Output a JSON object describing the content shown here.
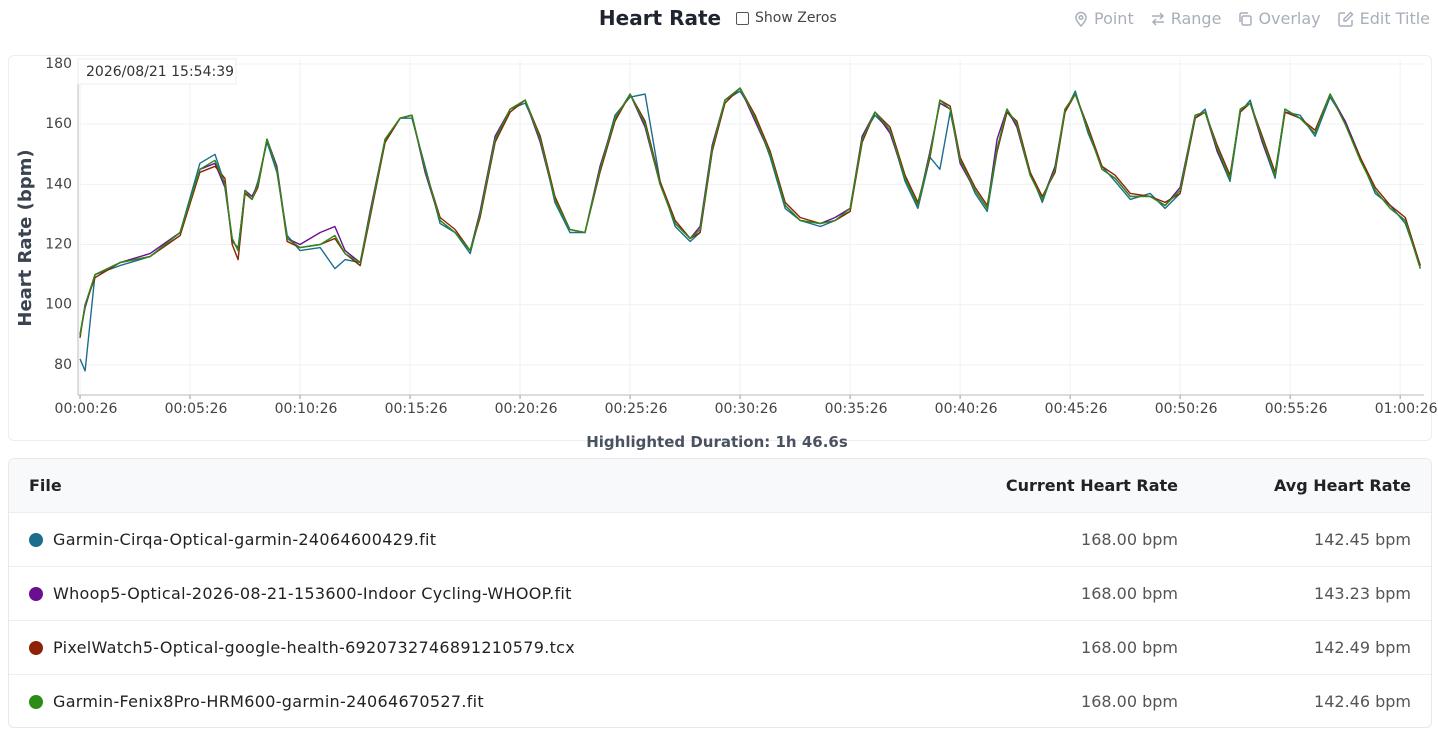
{
  "header": {
    "show_zeros": "Show Zeros",
    "buttons": [
      "Point",
      "Range",
      "Overlay",
      "Edit Title"
    ]
  },
  "chart_data": {
    "type": "line",
    "title": "Heart Rate",
    "y_label": "Heart Rate (bpm)",
    "tooltip": "2026/08/21 15:54:39",
    "xlim": [
      26,
      3691
    ],
    "ylim": [
      70,
      180
    ],
    "yticks": [
      80,
      100,
      120,
      140,
      160,
      180
    ],
    "xticks": [
      {
        "value": 26,
        "label": "00:00:26"
      },
      {
        "value": 326,
        "label": "00:05:26"
      },
      {
        "value": 626,
        "label": "00:10:26"
      },
      {
        "value": 926,
        "label": "00:15:26"
      },
      {
        "value": 1226,
        "label": "00:20:26"
      },
      {
        "value": 1526,
        "label": "00:25:26"
      },
      {
        "value": 1826,
        "label": "00:30:26"
      },
      {
        "value": 2126,
        "label": "00:35:26"
      },
      {
        "value": 2426,
        "label": "00:40:26"
      },
      {
        "value": 2726,
        "label": "00:45:26"
      },
      {
        "value": 3026,
        "label": "00:50:26"
      },
      {
        "value": 3326,
        "label": "00:55:26"
      },
      {
        "value": 3626,
        "label": "01:00:26"
      }
    ],
    "grid": true,
    "x": [
      26,
      40,
      67,
      135,
      217,
      299,
      353,
      394,
      421,
      441,
      457,
      476,
      495,
      511,
      536,
      563,
      591,
      626,
      681,
      721,
      749,
      790,
      817,
      858,
      899,
      931,
      967,
      1008,
      1049,
      1090,
      1117,
      1158,
      1199,
      1240,
      1281,
      1321,
      1362,
      1403,
      1444,
      1485,
      1526,
      1567,
      1608,
      1649,
      1690,
      1717,
      1750,
      1785,
      1826,
      1867,
      1908,
      1949,
      1990,
      2045,
      2085,
      2126,
      2159,
      2194,
      2235,
      2276,
      2311,
      2344,
      2371,
      2399,
      2426,
      2467,
      2500,
      2527,
      2554,
      2581,
      2617,
      2650,
      2685,
      2712,
      2740,
      2775,
      2813,
      2849,
      2890,
      2944,
      2985,
      3026,
      3067,
      3094,
      3127,
      3162,
      3190,
      3217,
      3250,
      3285,
      3312,
      3353,
      3394,
      3435,
      3476,
      3517,
      3558,
      3599,
      3640,
      3681
    ],
    "series": [
      {
        "name": "Garmin-Cirqa-Optical-garmin-24064600429.fit",
        "color": "#1b6e8e",
        "values": [
          82,
          78,
          110,
          113,
          116,
          124,
          147,
          150,
          140,
          121,
          119,
          137,
          135,
          141,
          154,
          144,
          123,
          118,
          119,
          112,
          115,
          114,
          130,
          154,
          162,
          162,
          146,
          127,
          124,
          117,
          130,
          154,
          165,
          167,
          156,
          134,
          124,
          124,
          145,
          163,
          169,
          170,
          141,
          126,
          121,
          124,
          151,
          168,
          171,
          163,
          149,
          132,
          128,
          126,
          128,
          131,
          156,
          163,
          158,
          141,
          132,
          149,
          145,
          164,
          149,
          137,
          131,
          151,
          164,
          160,
          144,
          134,
          146,
          164,
          171,
          157,
          146,
          141,
          135,
          137,
          132,
          137,
          162,
          165,
          151,
          141,
          164,
          168,
          154,
          142,
          164,
          163,
          156,
          169,
          161,
          149,
          137,
          133,
          127,
          113
        ]
      },
      {
        "name": "Whoop5-Optical-2026-08-21-153600-Indoor Cycling-WHOOP.fit",
        "color": "#6b0f92",
        "values": [
          90,
          99,
          110,
          114,
          117,
          124,
          145,
          147,
          139,
          122,
          118,
          138,
          136,
          140,
          155,
          146,
          122,
          120,
          124,
          126,
          118,
          114,
          131,
          155,
          162,
          163,
          144,
          128,
          124,
          118,
          131,
          156,
          165,
          168,
          154,
          135,
          125,
          124,
          146,
          162,
          170,
          159,
          140,
          127,
          122,
          126,
          153,
          168,
          172,
          161,
          150,
          133,
          128,
          127,
          129,
          132,
          156,
          164,
          157,
          142,
          133,
          151,
          167,
          165,
          147,
          138,
          132,
          155,
          165,
          159,
          143,
          135,
          146,
          165,
          170,
          158,
          145,
          142,
          136,
          136,
          133,
          139,
          163,
          164,
          151,
          142,
          165,
          167,
          154,
          143,
          165,
          162,
          157,
          170,
          161,
          149,
          138,
          132,
          128,
          112
        ]
      },
      {
        "name": "PixelWatch5-Optical-google-health-6920732746891210579.tcx",
        "color": "#8c2306",
        "values": [
          89,
          100,
          109,
          114,
          116,
          123,
          144,
          146,
          142,
          120,
          115,
          137,
          135,
          139,
          155,
          145,
          121,
          119,
          120,
          122,
          117,
          113,
          129,
          154,
          162,
          163,
          145,
          129,
          125,
          118,
          129,
          154,
          164,
          168,
          156,
          136,
          125,
          124,
          144,
          161,
          170,
          161,
          141,
          128,
          122,
          124,
          151,
          167,
          172,
          163,
          151,
          134,
          129,
          127,
          128,
          131,
          154,
          164,
          159,
          143,
          134,
          149,
          168,
          166,
          149,
          139,
          133,
          151,
          164,
          161,
          144,
          136,
          144,
          164,
          170,
          159,
          146,
          143,
          137,
          136,
          134,
          137,
          162,
          164,
          153,
          143,
          164,
          167,
          156,
          144,
          164,
          162,
          158,
          170,
          160,
          149,
          139,
          133,
          129,
          113
        ]
      },
      {
        "name": "Garmin-Fenix8Pro-HRM600-garmin-24064670527.fit",
        "color": "#2b8c16",
        "values": [
          90,
          100,
          110,
          114,
          116,
          124,
          145,
          148,
          140,
          122,
          118,
          138,
          135,
          140,
          155,
          145,
          122,
          119,
          120,
          123,
          117,
          114,
          130,
          155,
          162,
          163,
          145,
          128,
          124,
          118,
          130,
          155,
          165,
          168,
          155,
          135,
          125,
          124,
          145,
          162,
          170,
          160,
          140,
          127,
          122,
          125,
          152,
          168,
          172,
          162,
          150,
          133,
          128,
          127,
          128,
          132,
          155,
          164,
          158,
          142,
          133,
          150,
          168,
          165,
          148,
          138,
          132,
          152,
          165,
          160,
          143,
          135,
          145,
          165,
          170,
          158,
          145,
          142,
          136,
          136,
          133,
          138,
          163,
          164,
          152,
          142,
          165,
          167,
          155,
          143,
          165,
          162,
          157,
          170,
          160,
          148,
          138,
          132,
          128,
          112
        ]
      }
    ]
  },
  "highlighted_duration": "Highlighted Duration: 1h 46.6s",
  "table": {
    "columns": [
      "File",
      "Current Heart Rate",
      "Avg Heart Rate"
    ],
    "rows": [
      {
        "current": "168.00 bpm",
        "avg": "142.45 bpm"
      },
      {
        "current": "168.00 bpm",
        "avg": "143.23 bpm"
      },
      {
        "current": "168.00 bpm",
        "avg": "142.49 bpm"
      },
      {
        "current": "168.00 bpm",
        "avg": "142.46 bpm"
      }
    ]
  }
}
